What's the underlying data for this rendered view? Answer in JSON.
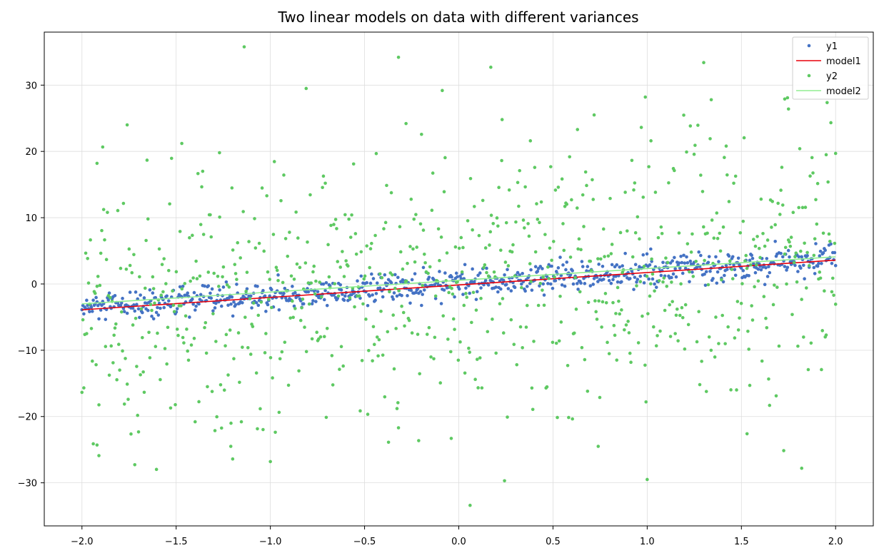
{
  "chart_data": {
    "type": "scatter",
    "title": "Two linear models on data with different variances",
    "xlabel": "",
    "ylabel": "",
    "xlim": [
      -2.2,
      2.2
    ],
    "ylim": [
      -36.5,
      38.0
    ],
    "x_ticks": [
      -2.0,
      -1.5,
      -1.0,
      -0.5,
      0.0,
      0.5,
      1.0,
      1.5,
      2.0
    ],
    "x_tick_labels": [
      "−2.0",
      "−1.5",
      "−1.0",
      "−0.5",
      "0.0",
      "0.5",
      "1.0",
      "1.5",
      "2.0"
    ],
    "y_ticks": [
      -30,
      -20,
      -10,
      0,
      10,
      20,
      30
    ],
    "y_tick_labels": [
      "−30",
      "−20",
      "−10",
      "0",
      "10",
      "20",
      "30"
    ],
    "grid": true,
    "legend_position": "top-right",
    "legend": [
      {
        "label": "y1",
        "kind": "marker",
        "color": "#4472c4"
      },
      {
        "label": "model1",
        "kind": "line",
        "color": "#e8000b"
      },
      {
        "label": "y2",
        "kind": "marker",
        "color": "#5ec962"
      },
      {
        "label": "model2",
        "kind": "line",
        "color": "#90ee90"
      }
    ],
    "series": [
      {
        "name": "y1",
        "kind": "scatter",
        "color": "#4472c4",
        "n_points": 800,
        "x_range": [
          -2.0,
          2.0
        ],
        "trend": {
          "slope": 1.9,
          "intercept": 0.0
        },
        "noise_std": 1.1
      },
      {
        "name": "model1",
        "kind": "line",
        "color": "#e8000b",
        "x": [
          -2.0,
          2.0
        ],
        "y": [
          -3.9,
          3.6
        ]
      },
      {
        "name": "y2",
        "kind": "scatter",
        "color": "#5ec962",
        "n_points": 800,
        "x_range": [
          -2.0,
          2.0
        ],
        "trend": {
          "slope": 1.9,
          "intercept": 0.0
        },
        "noise_std": 10.0
      },
      {
        "name": "model2",
        "kind": "line",
        "color": "#90ee90",
        "x": [
          -2.0,
          2.0
        ],
        "y": [
          -3.0,
          4.1
        ]
      }
    ],
    "sample_points": {
      "y2": [
        [
          -1.76,
          24.0
        ],
        [
          -1.47,
          21.2
        ],
        [
          -1.27,
          19.8
        ],
        [
          -0.81,
          29.5
        ],
        [
          -0.32,
          34.2
        ],
        [
          -0.28,
          24.2
        ],
        [
          0.17,
          32.7
        ],
        [
          0.23,
          24.8
        ],
        [
          0.38,
          21.6
        ],
        [
          0.63,
          23.3
        ],
        [
          0.99,
          28.2
        ],
        [
          1.02,
          21.6
        ],
        [
          1.3,
          33.4
        ],
        [
          1.34,
          27.8
        ],
        [
          1.73,
          27.9
        ],
        [
          1.75,
          26.4
        ],
        [
          -1.92,
          18.2
        ],
        [
          -1.92,
          -24.3
        ],
        [
          -1.91,
          -25.9
        ],
        [
          -1.21,
          -24.5
        ],
        [
          -1.2,
          -26.4
        ],
        [
          -1.0,
          -26.8
        ],
        [
          -0.32,
          -21.7
        ],
        [
          -0.04,
          -23.3
        ],
        [
          0.06,
          -33.4
        ],
        [
          0.74,
          -24.5
        ],
        [
          1.0,
          -29.5
        ],
        [
          1.53,
          -22.6
        ],
        [
          1.82,
          -27.8
        ],
        [
          1.95,
          19.5
        ],
        [
          2.0,
          19.7
        ]
      ]
    }
  }
}
